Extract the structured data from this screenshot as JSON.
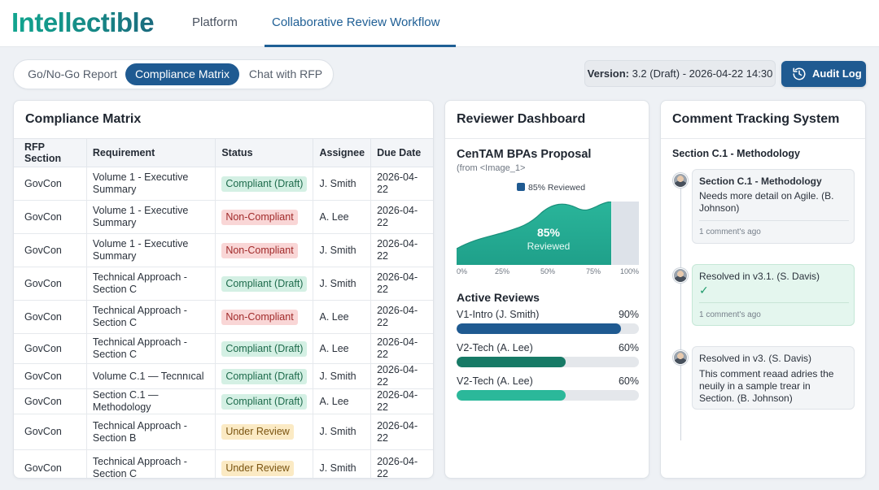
{
  "header": {
    "logo": "Intellectible",
    "nav": [
      "Platform",
      "Collaborative Review Workflow"
    ]
  },
  "tabs": [
    "Go/No-Go Report",
    "Compliance Matrix",
    "Chat with RFP"
  ],
  "version": {
    "label": "Version:",
    "value": "3.2 (Draft) - 2026-04-22 14:30"
  },
  "audit_button": {
    "label": "Audit Log",
    "icon": "history-icon"
  },
  "compliance": {
    "title": "Compliance Matrix",
    "columns": [
      "RFP Section",
      "Requirement",
      "Status",
      "Assignee",
      "Due Date"
    ],
    "rows": [
      {
        "section": "GovCon",
        "requirement": "Volume 1 - Executive Summary",
        "status": "Compliant (Draft)",
        "assignee": "J. Smith",
        "due": "2026-04-22"
      },
      {
        "section": "GovCon",
        "requirement": "Volume 1 - Executive Summary",
        "status": "Non-Compliant",
        "assignee": "A. Lee",
        "due": "2026-04-22"
      },
      {
        "section": "GovCon",
        "requirement": "Volume 1 - Executive Summary",
        "status": "Non-Compliant",
        "assignee": "J. Smith",
        "due": "2026-04-22"
      },
      {
        "section": "GovCon",
        "requirement": "Technical Approach - Section C",
        "status": "Compliant (Draft)",
        "assignee": "J. Smith",
        "due": "2026-04-22"
      },
      {
        "section": "GovCon",
        "requirement": "Technical Approach - Section C",
        "status": "Non-Compliant",
        "assignee": "A. Lee",
        "due": "2026-04-22"
      },
      {
        "section": "GovCon",
        "requirement": "Technical Approach - Section C",
        "status": "Compliant (Draft)",
        "assignee": "A. Lee",
        "due": "2026-04-22"
      },
      {
        "section": "GovCon",
        "requirement": "Volume C.1 — Tecnnıcal",
        "status": "Compliant (Draft)",
        "assignee": "J. Smith",
        "due": "2026-04-22"
      },
      {
        "section": "GovCon",
        "requirement": "Section C.1 — Methodology",
        "status": "Compliant (Draft)",
        "assignee": "A. Lee",
        "due": "2026-04-22"
      },
      {
        "section": "GovCon",
        "requirement": "Technical Approach - Section B",
        "status": "Under Review",
        "assignee": "J. Smith",
        "due": "2026-04-22"
      },
      {
        "section": "GovCon",
        "requirement": "Technical Approach - Section C",
        "status": "Under Review",
        "assignee": "J. Smith",
        "due": "2026-04-22"
      }
    ],
    "status_colors": {
      "Compliant (Draft)": "#d4f0e4",
      "Non-Compliant": "#f9d6d6",
      "Under Review": "#fbeac4"
    }
  },
  "dashboard": {
    "title": "Reviewer Dashboard",
    "proposal": "CenTAM BPAs Proposal",
    "source": "(from <Image_1>",
    "legend": "85% Reviewed",
    "progress_pct": "85%",
    "progress_label": "Reviewed",
    "chart_data": {
      "type": "area",
      "x_ticks": [
        "0%",
        "25%",
        "50%",
        "75%",
        "100%"
      ],
      "reviewed_fraction": 0.85,
      "series": [
        {
          "name": "85% Reviewed",
          "color": "#1f5a91"
        }
      ]
    },
    "active_title": "Active Reviews",
    "reviews": [
      {
        "name": "V1-Intro (J. Smith)",
        "pct_text": "90%",
        "value": 0.9,
        "color": "#1f5a91"
      },
      {
        "name": "V2-Tech (A. Lee)",
        "pct_text": "60%",
        "value": 0.6,
        "color": "#177a66"
      },
      {
        "name": "V2-Tech (A. Lee)",
        "pct_text": "60%",
        "value": 0.6,
        "color": "#2bb89a"
      }
    ]
  },
  "comments": {
    "title": "Comment Tracking System",
    "section": "Section C.1 - Methodology",
    "items": [
      {
        "title": "Section C.1 - Methodology",
        "body": "Needs more detail on Agile. (B. Johnson)",
        "meta": "1 comment's ago",
        "resolved": false
      },
      {
        "body": "Resolved in v3.1. (S. Davis)",
        "check": "✓",
        "meta": "1 comment's ago",
        "resolved": true
      },
      {
        "body1": "Resolved in v3. (S. Davis)",
        "body2": "This comment reaad adries the neuily in a sample trear in Section. (B. Johnson)",
        "resolved": false
      }
    ]
  }
}
